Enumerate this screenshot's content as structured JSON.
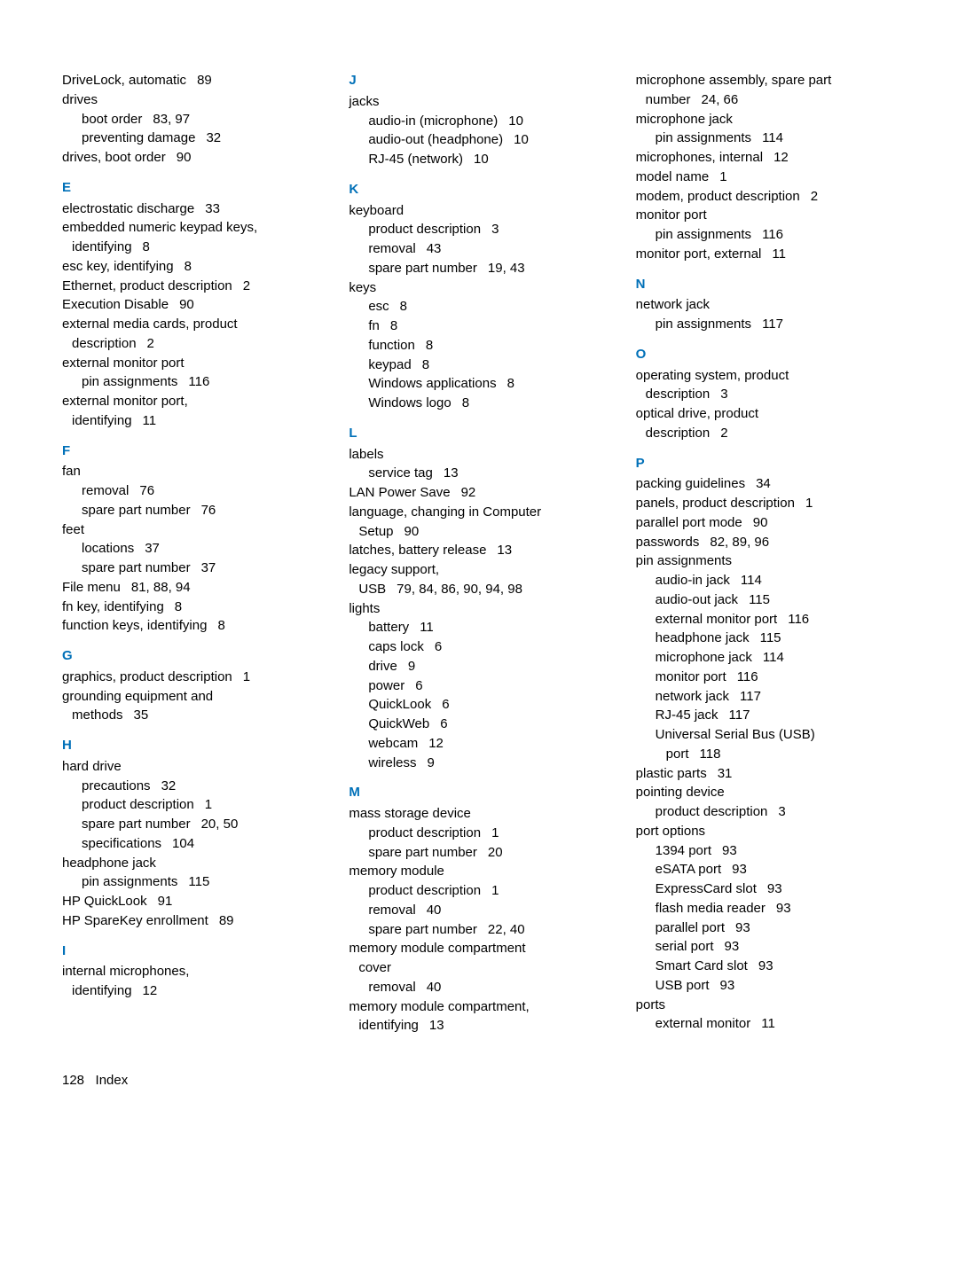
{
  "footer": {
    "page": "128",
    "label": "Index"
  },
  "col1": {
    "pre": [
      {
        "t": "DriveLock, automatic",
        "p": "89"
      },
      {
        "t": "drives"
      },
      {
        "t": "boot order",
        "p": "83, 97",
        "cls": "sub"
      },
      {
        "t": "preventing damage",
        "p": "32",
        "cls": "sub"
      },
      {
        "t": "drives, boot order",
        "p": "90"
      }
    ],
    "E": [
      {
        "t": "electrostatic discharge",
        "p": "33"
      },
      {
        "t": "embedded numeric keypad keys,"
      },
      {
        "t": "identifying",
        "p": "8",
        "cls": "cont"
      },
      {
        "t": "esc key, identifying",
        "p": "8"
      },
      {
        "t": "Ethernet, product description",
        "p": "2"
      },
      {
        "t": "Execution Disable",
        "p": "90"
      },
      {
        "t": "external media cards, product"
      },
      {
        "t": "description",
        "p": "2",
        "cls": "cont"
      },
      {
        "t": "external monitor port"
      },
      {
        "t": "pin assignments",
        "p": "116",
        "cls": "sub"
      },
      {
        "t": "external monitor port,"
      },
      {
        "t": "identifying",
        "p": "11",
        "cls": "cont"
      }
    ],
    "F": [
      {
        "t": "fan"
      },
      {
        "t": "removal",
        "p": "76",
        "cls": "sub"
      },
      {
        "t": "spare part number",
        "p": "76",
        "cls": "sub"
      },
      {
        "t": "feet"
      },
      {
        "t": "locations",
        "p": "37",
        "cls": "sub"
      },
      {
        "t": "spare part number",
        "p": "37",
        "cls": "sub"
      },
      {
        "t": "File menu",
        "p": "81, 88, 94"
      },
      {
        "t": "fn key, identifying",
        "p": "8"
      },
      {
        "t": "function keys, identifying",
        "p": "8"
      }
    ],
    "G": [
      {
        "t": "graphics, product description",
        "p": "1"
      },
      {
        "t": "grounding equipment and"
      },
      {
        "t": "methods",
        "p": "35",
        "cls": "cont"
      }
    ],
    "H": [
      {
        "t": "hard drive"
      },
      {
        "t": "precautions",
        "p": "32",
        "cls": "sub"
      },
      {
        "t": "product description",
        "p": "1",
        "cls": "sub"
      },
      {
        "t": "spare part number",
        "p": "20, 50",
        "cls": "sub"
      },
      {
        "t": "specifications",
        "p": "104",
        "cls": "sub"
      },
      {
        "t": "headphone jack"
      },
      {
        "t": "pin assignments",
        "p": "115",
        "cls": "sub"
      },
      {
        "t": "HP QuickLook",
        "p": "91"
      },
      {
        "t": "HP SpareKey enrollment",
        "p": "89"
      }
    ],
    "I": [
      {
        "t": "internal microphones,"
      },
      {
        "t": "identifying",
        "p": "12",
        "cls": "cont"
      }
    ]
  },
  "col2": {
    "J": [
      {
        "t": "jacks"
      },
      {
        "t": "audio-in (microphone)",
        "p": "10",
        "cls": "sub"
      },
      {
        "t": "audio-out (headphone)",
        "p": "10",
        "cls": "sub"
      },
      {
        "t": "RJ-45 (network)",
        "p": "10",
        "cls": "sub"
      }
    ],
    "K": [
      {
        "t": "keyboard"
      },
      {
        "t": "product description",
        "p": "3",
        "cls": "sub"
      },
      {
        "t": "removal",
        "p": "43",
        "cls": "sub"
      },
      {
        "t": "spare part number",
        "p": "19, 43",
        "cls": "sub"
      },
      {
        "t": "keys"
      },
      {
        "t": "esc",
        "p": "8",
        "cls": "sub"
      },
      {
        "t": "fn",
        "p": "8",
        "cls": "sub"
      },
      {
        "t": "function",
        "p": "8",
        "cls": "sub"
      },
      {
        "t": "keypad",
        "p": "8",
        "cls": "sub"
      },
      {
        "t": "Windows applications",
        "p": "8",
        "cls": "sub"
      },
      {
        "t": "Windows logo",
        "p": "8",
        "cls": "sub"
      }
    ],
    "L": [
      {
        "t": "labels"
      },
      {
        "t": "service tag",
        "p": "13",
        "cls": "sub"
      },
      {
        "t": "LAN Power Save",
        "p": "92"
      },
      {
        "t": "language, changing in Computer"
      },
      {
        "t": "Setup",
        "p": "90",
        "cls": "cont"
      },
      {
        "t": "latches, battery release",
        "p": "13"
      },
      {
        "t": "legacy support,"
      },
      {
        "t": "USB",
        "p": "79, 84, 86, 90, 94, 98",
        "cls": "cont"
      },
      {
        "t": "lights"
      },
      {
        "t": "battery",
        "p": "11",
        "cls": "sub"
      },
      {
        "t": "caps lock",
        "p": "6",
        "cls": "sub"
      },
      {
        "t": "drive",
        "p": "9",
        "cls": "sub"
      },
      {
        "t": "power",
        "p": "6",
        "cls": "sub"
      },
      {
        "t": "QuickLook",
        "p": "6",
        "cls": "sub"
      },
      {
        "t": "QuickWeb",
        "p": "6",
        "cls": "sub"
      },
      {
        "t": "webcam",
        "p": "12",
        "cls": "sub"
      },
      {
        "t": "wireless",
        "p": "9",
        "cls": "sub"
      }
    ],
    "M": [
      {
        "t": "mass storage device"
      },
      {
        "t": "product description",
        "p": "1",
        "cls": "sub"
      },
      {
        "t": "spare part number",
        "p": "20",
        "cls": "sub"
      },
      {
        "t": "memory module"
      },
      {
        "t": "product description",
        "p": "1",
        "cls": "sub"
      },
      {
        "t": "removal",
        "p": "40",
        "cls": "sub"
      },
      {
        "t": "spare part number",
        "p": "22, 40",
        "cls": "sub"
      },
      {
        "t": "memory module compartment"
      },
      {
        "t": "cover",
        "cls": "cont"
      },
      {
        "t": "removal",
        "p": "40",
        "cls": "sub"
      },
      {
        "t": "memory module compartment,"
      },
      {
        "t": "identifying",
        "p": "13",
        "cls": "cont"
      }
    ]
  },
  "col3": {
    "pre": [
      {
        "t": "microphone assembly, spare part"
      },
      {
        "t": "number",
        "p": "24, 66",
        "cls": "cont"
      },
      {
        "t": "microphone jack"
      },
      {
        "t": "pin assignments",
        "p": "114",
        "cls": "sub"
      },
      {
        "t": "microphones, internal",
        "p": "12"
      },
      {
        "t": "model name",
        "p": "1"
      },
      {
        "t": "modem, product description",
        "p": "2"
      },
      {
        "t": "monitor port"
      },
      {
        "t": "pin assignments",
        "p": "116",
        "cls": "sub"
      },
      {
        "t": "monitor port, external",
        "p": "11"
      }
    ],
    "N": [
      {
        "t": "network jack"
      },
      {
        "t": "pin assignments",
        "p": "117",
        "cls": "sub"
      }
    ],
    "O": [
      {
        "t": "operating system, product"
      },
      {
        "t": "description",
        "p": "3",
        "cls": "cont"
      },
      {
        "t": "optical drive, product"
      },
      {
        "t": "description",
        "p": "2",
        "cls": "cont"
      }
    ],
    "P": [
      {
        "t": "packing guidelines",
        "p": "34"
      },
      {
        "t": "panels, product description",
        "p": "1"
      },
      {
        "t": "parallel port mode",
        "p": "90"
      },
      {
        "t": "passwords",
        "p": "82, 89, 96"
      },
      {
        "t": "pin assignments"
      },
      {
        "t": "audio-in jack",
        "p": "114",
        "cls": "sub"
      },
      {
        "t": "audio-out jack",
        "p": "115",
        "cls": "sub"
      },
      {
        "t": "external monitor port",
        "p": "116",
        "cls": "sub"
      },
      {
        "t": "headphone jack",
        "p": "115",
        "cls": "sub"
      },
      {
        "t": "microphone jack",
        "p": "114",
        "cls": "sub"
      },
      {
        "t": "monitor port",
        "p": "116",
        "cls": "sub"
      },
      {
        "t": "network jack",
        "p": "117",
        "cls": "sub"
      },
      {
        "t": "RJ-45 jack",
        "p": "117",
        "cls": "sub"
      },
      {
        "t": "Universal Serial Bus (USB)",
        "cls": "sub"
      },
      {
        "t": "port",
        "p": "118",
        "cls": "sub2"
      },
      {
        "t": "plastic parts",
        "p": "31"
      },
      {
        "t": "pointing device"
      },
      {
        "t": "product description",
        "p": "3",
        "cls": "sub"
      },
      {
        "t": "port options"
      },
      {
        "t": "1394 port",
        "p": "93",
        "cls": "sub"
      },
      {
        "t": "eSATA port",
        "p": "93",
        "cls": "sub"
      },
      {
        "t": "ExpressCard slot",
        "p": "93",
        "cls": "sub"
      },
      {
        "t": "flash media reader",
        "p": "93",
        "cls": "sub"
      },
      {
        "t": "parallel port",
        "p": "93",
        "cls": "sub"
      },
      {
        "t": "serial port",
        "p": "93",
        "cls": "sub"
      },
      {
        "t": "Smart Card slot",
        "p": "93",
        "cls": "sub"
      },
      {
        "t": "USB port",
        "p": "93",
        "cls": "sub"
      },
      {
        "t": "ports"
      },
      {
        "t": "external monitor",
        "p": "11",
        "cls": "sub"
      }
    ]
  }
}
